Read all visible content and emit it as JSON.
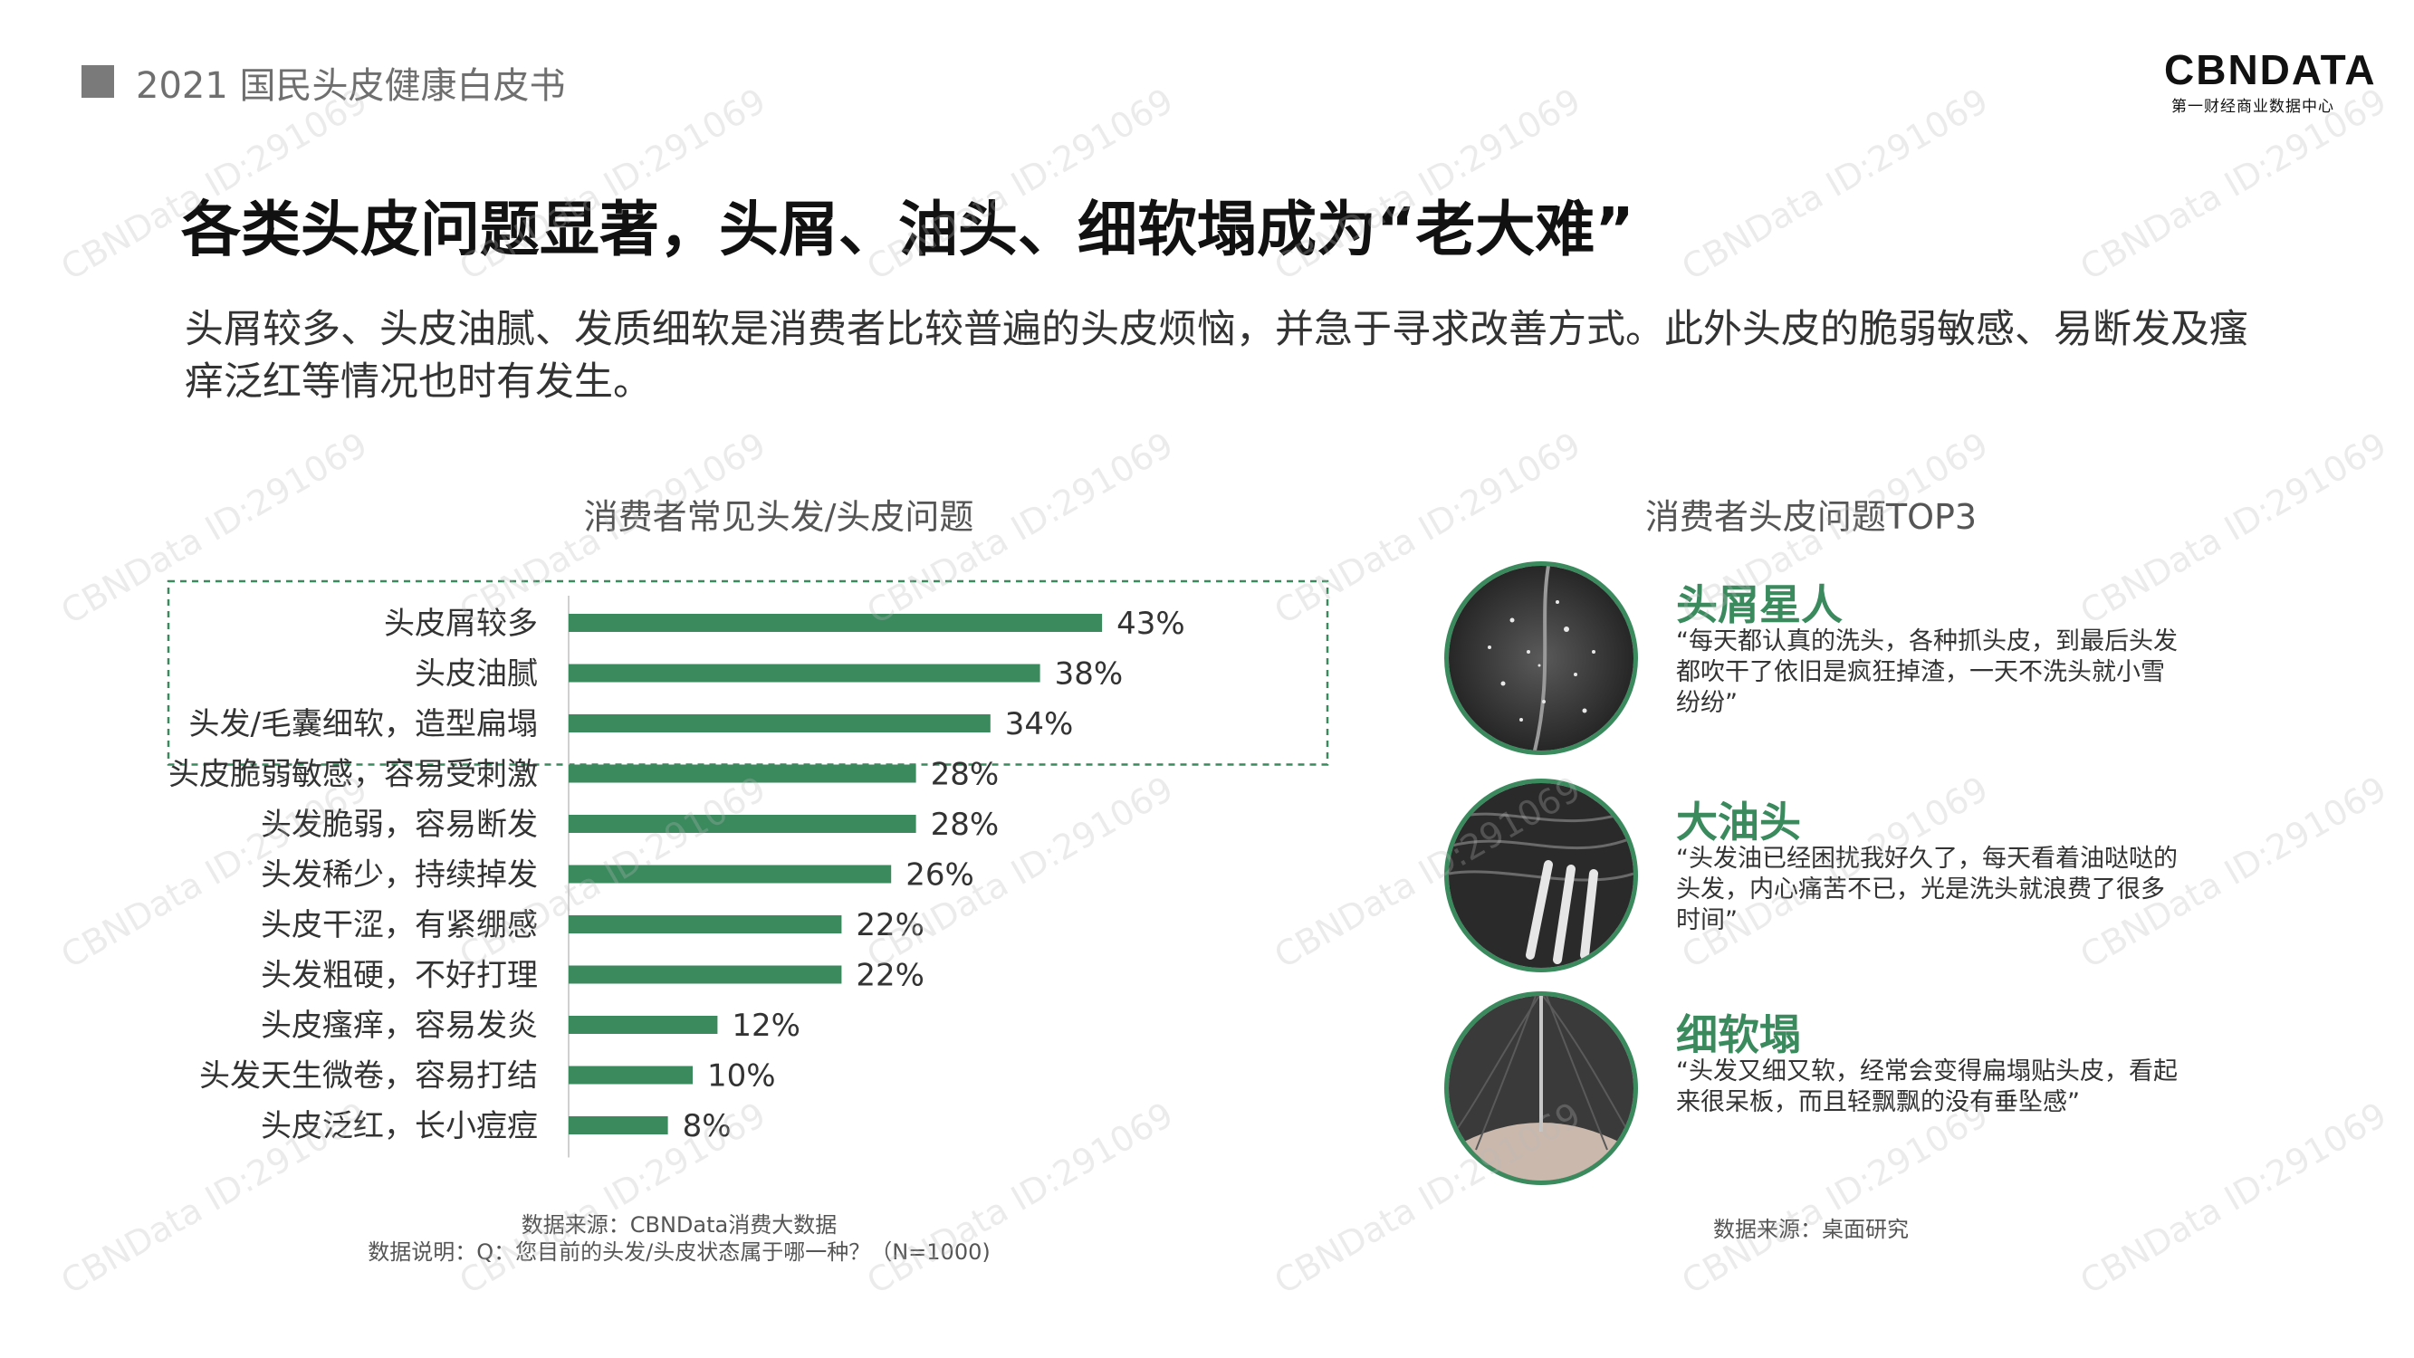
{
  "header": {
    "title": "2021 国民头皮健康白皮书"
  },
  "logo": {
    "main": "CBNDATA",
    "sub": "第一财经商业数据中心"
  },
  "page_title": "各类头皮问题显著，头屑、油头、细软塌成为“老大难”",
  "subtitle": "头屑较多、头皮油腻、发质细软是消费者比较普遍的头皮烦恼，并急于寻求改善方式。此外头皮的脆弱敏感、易断发及瘙痒泛红等情况也时有发生。",
  "chart_data": {
    "type": "bar",
    "orientation": "horizontal",
    "title": "消费者常见头发/头皮问题",
    "categories": [
      "头皮屑较多",
      "头皮油腻",
      "头发/毛囊细软，造型扁塌",
      "头皮脆弱敏感，容易受刺激",
      "头发脆弱，容易断发",
      "头发稀少，持续掉发",
      "头皮干涩，有紧绷感",
      "头发粗硬，不好打理",
      "头皮瘙痒，容易发炎",
      "头发天生微卷，容易打结",
      "头皮泛红，长小痘痘"
    ],
    "values": [
      43,
      38,
      34,
      28,
      28,
      26,
      22,
      22,
      12,
      10,
      8
    ],
    "labels": [
      "43%",
      "38%",
      "34%",
      "28%",
      "28%",
      "26%",
      "22%",
      "22%",
      "12%",
      "10%",
      "8%"
    ],
    "xlim": [
      0,
      45
    ],
    "highlighted_top": 3,
    "grid": false,
    "color": "#3a8a5e"
  },
  "source_left": {
    "line1": "数据来源：CBNData消费大数据",
    "line2": "数据说明：Q：您目前的头发/头皮状态属于哪一种？（N=1000)"
  },
  "top3": {
    "title": "消费者头皮问题TOP3",
    "items": [
      {
        "name": "头屑星人",
        "quote": "“每天都认真的洗头，各种抓头皮，到最后头发都吹干了依旧是疯狂掉渣，一天不洗头就小雪纷纷”"
      },
      {
        "name": "大油头",
        "quote": "“头发油已经困扰我好久了，每天看着油哒哒的头发，内心痛苦不已，光是洗头就浪费了很多时间”"
      },
      {
        "name": "细软塌",
        "quote": "“头发又细又软，经常会变得扁塌贴头皮，看起来很呆板，而且轻飘飘的没有垂坠感”"
      }
    ],
    "source": "数据来源：桌面研究"
  },
  "watermark": "CBNData ID:291069",
  "colors": {
    "accent": "#3a8a5e",
    "header_square": "#7a7a7a"
  }
}
